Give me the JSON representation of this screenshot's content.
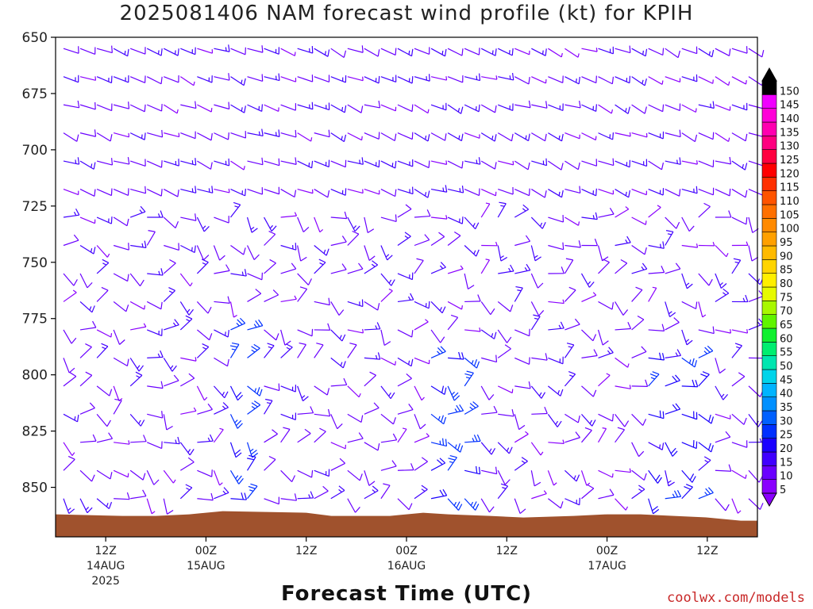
{
  "chart_data": {
    "type": "wind barbs time-height",
    "title": "2025081406 NAM forecast wind profile (kt) for KPIH",
    "xlabel": "Forecast Time (UTC)",
    "ylabel": "",
    "y_axis": {
      "ticks": [
        650,
        675,
        700,
        725,
        750,
        775,
        800,
        825,
        850
      ],
      "range": [
        650,
        872
      ],
      "inverted": true
    },
    "x_axis": {
      "range_hours": [
        0,
        84
      ],
      "ticks": [
        {
          "hour": 6,
          "label": "12Z",
          "sub": "14AUG",
          "sub2": "2025"
        },
        {
          "hour": 18,
          "label": "00Z",
          "sub": "15AUG",
          "sub2": ""
        },
        {
          "hour": 30,
          "label": "12Z",
          "sub": "",
          "sub2": ""
        },
        {
          "hour": 42,
          "label": "00Z",
          "sub": "16AUG",
          "sub2": ""
        },
        {
          "hour": 54,
          "label": "12Z",
          "sub": "",
          "sub2": ""
        },
        {
          "hour": 66,
          "label": "00Z",
          "sub": "17AUG",
          "sub2": ""
        },
        {
          "hour": 78,
          "label": "12Z",
          "sub": "",
          "sub2": ""
        }
      ]
    },
    "colorbar": {
      "levels": [
        "5",
        "10",
        "15",
        "20",
        "25",
        "30",
        "35",
        "40",
        "45",
        "50",
        "55",
        "60",
        "65",
        "70",
        "75",
        "80",
        "85",
        "90",
        "95",
        "100",
        "105",
        "110",
        "115",
        "120",
        "125",
        "130",
        "135",
        "140",
        "145",
        "150"
      ],
      "colors": [
        "#8a00ff",
        "#6a00ff",
        "#4000ff",
        "#1a00ff",
        "#0030ff",
        "#0060ff",
        "#0090ff",
        "#00b4ff",
        "#00d4ea",
        "#00e6b0",
        "#00ee70",
        "#10f030",
        "#60f400",
        "#a8f800",
        "#e6fa00",
        "#ffef00",
        "#ffd400",
        "#ffba00",
        "#ffa000",
        "#ff8a00",
        "#ff7000",
        "#ff5400",
        "#ff3000",
        "#ff0000",
        "#ff0040",
        "#ff0080",
        "#ff00b0",
        "#ff00d8",
        "#f000ff",
        "#000000"
      ]
    },
    "terrain": {
      "color": "#a0522d",
      "surface_pressure_hpa": 862
    },
    "wind_barbs": {
      "pressure_levels_step_hpa": 12.5,
      "time_step_hours": 2,
      "typical_speed_kt": [
        5,
        20
      ],
      "strongest_speed_kt": 35
    }
  },
  "credit": "coolwx.com/models"
}
